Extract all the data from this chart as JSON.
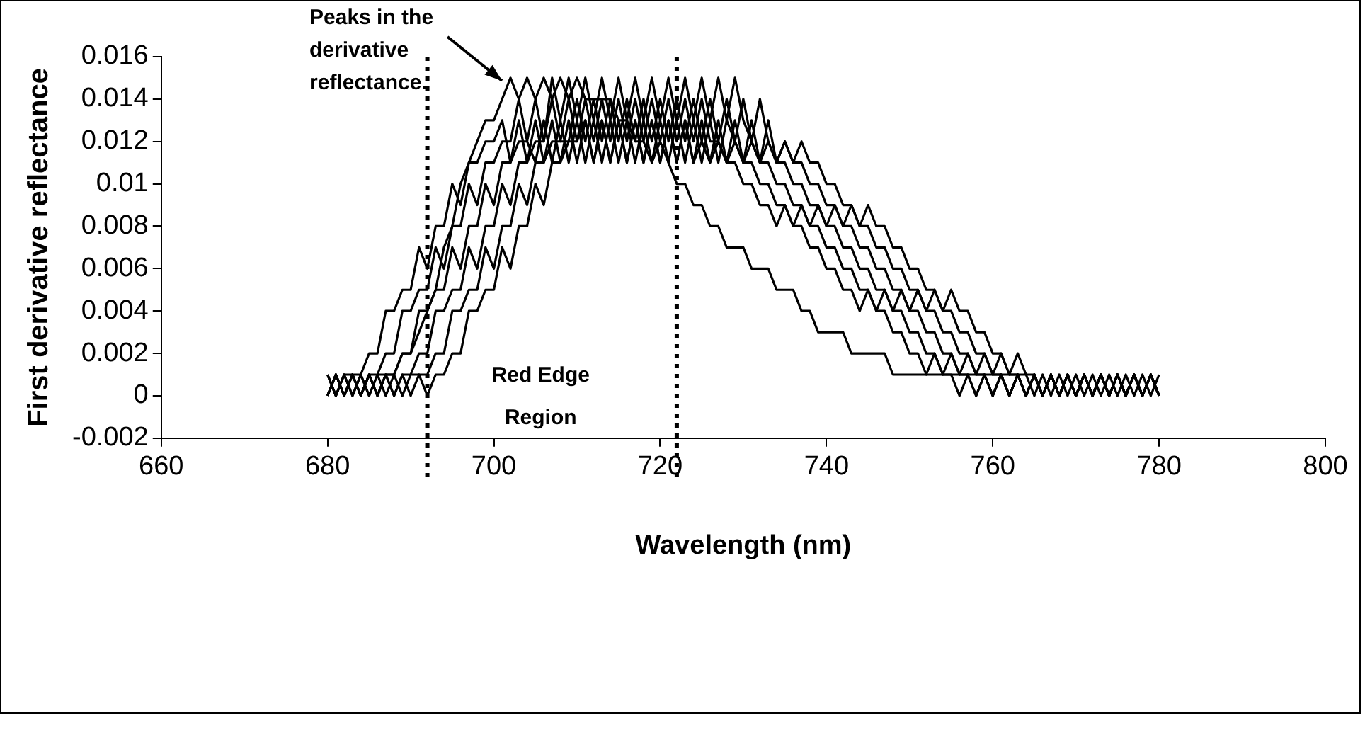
{
  "chart_data": {
    "type": "line",
    "xlabel": "Wavelength (nm)",
    "ylabel": "First derivative reflectance",
    "xlim": [
      660,
      800
    ],
    "xticks": [
      660,
      680,
      700,
      720,
      740,
      760,
      780,
      800
    ],
    "ylim": [
      -0.002,
      0.016
    ],
    "yticks": [
      -0.002,
      0,
      0.002,
      0.004,
      0.006,
      0.008,
      0.01,
      0.012,
      0.014,
      0.016
    ],
    "grid": false,
    "legend": false,
    "marker": "none",
    "line_style": "solid",
    "x": [
      680,
      681,
      682,
      683,
      684,
      685,
      686,
      687,
      688,
      689,
      690,
      691,
      692,
      693,
      694,
      695,
      696,
      697,
      698,
      699,
      700,
      701,
      702,
      703,
      704,
      705,
      706,
      707,
      708,
      709,
      710,
      711,
      712,
      713,
      714,
      715,
      716,
      717,
      718,
      719,
      720,
      721,
      722,
      723,
      724,
      725,
      726,
      727,
      728,
      729,
      730,
      731,
      732,
      733,
      734,
      735,
      736,
      737,
      738,
      739,
      740,
      741,
      742,
      743,
      744,
      745,
      746,
      747,
      748,
      749,
      750,
      751,
      752,
      753,
      754,
      755,
      756,
      757,
      758,
      759,
      760,
      761,
      762,
      763,
      764,
      765,
      766,
      767,
      768,
      769,
      770,
      771,
      772,
      773,
      774,
      775,
      776,
      777,
      778,
      779,
      780
    ],
    "series": [
      {
        "color": "#000000",
        "values": [
          0,
          0.001,
          0,
          0.001,
          0,
          0.001,
          0,
          0.001,
          0.001,
          0.002,
          0.002,
          0.003,
          0.004,
          0.005,
          0.007,
          0.008,
          0.01,
          0.011,
          0.012,
          0.013,
          0.013,
          0.014,
          0.015,
          0.014,
          0.015,
          0.014,
          0.015,
          0.014,
          0.015,
          0.014,
          0.015,
          0.014,
          0.014,
          0.014,
          0.014,
          0.013,
          0.013,
          0.012,
          0.012,
          0.011,
          0.012,
          0.011,
          0.01,
          0.01,
          0.009,
          0.009,
          0.008,
          0.008,
          0.007,
          0.007,
          0.007,
          0.006,
          0.006,
          0.006,
          0.005,
          0.005,
          0.005,
          0.004,
          0.004,
          0.003,
          0.003,
          0.003,
          0.003,
          0.002,
          0.002,
          0.002,
          0.002,
          0.002,
          0.001,
          0.001,
          0.001,
          0.001,
          0.001,
          0.001,
          0.001,
          0.001,
          0.001,
          0.001,
          0.001,
          0.001,
          0.001,
          0.001,
          0.001,
          0.001,
          0.001,
          0,
          0.001,
          0,
          0.001,
          0,
          0.001,
          0,
          0.001,
          0,
          0.001,
          0,
          0.001,
          0,
          0.001,
          0,
          0.001
        ]
      },
      {
        "color": "#000000",
        "values": [
          0.001,
          0,
          0.001,
          0.001,
          0.001,
          0.002,
          0.002,
          0.004,
          0.004,
          0.005,
          0.005,
          0.007,
          0.006,
          0.008,
          0.008,
          0.01,
          0.009,
          0.011,
          0.011,
          0.012,
          0.012,
          0.013,
          0.011,
          0.013,
          0.011,
          0.013,
          0.011,
          0.013,
          0.011,
          0.013,
          0.011,
          0.013,
          0.011,
          0.013,
          0.011,
          0.013,
          0.011,
          0.013,
          0.011,
          0.013,
          0.011,
          0.013,
          0.011,
          0.013,
          0.011,
          0.012,
          0.011,
          0.012,
          0.011,
          0.011,
          0.01,
          0.01,
          0.009,
          0.009,
          0.008,
          0.009,
          0.008,
          0.008,
          0.007,
          0.007,
          0.006,
          0.006,
          0.005,
          0.005,
          0.004,
          0.005,
          0.004,
          0.004,
          0.003,
          0.003,
          0.002,
          0.002,
          0.001,
          0.002,
          0.001,
          0.001,
          0,
          0.001,
          0,
          0.001,
          0,
          0.001,
          0,
          0.001,
          0,
          0.001,
          0,
          0.001,
          0,
          0.001,
          0,
          0.001,
          0,
          0.001,
          0,
          0.001,
          0,
          0.001,
          0,
          0.001,
          0
        ]
      },
      {
        "color": "#000000",
        "values": [
          0,
          0.001,
          0,
          0.001,
          0,
          0.001,
          0.001,
          0.002,
          0.002,
          0.004,
          0.004,
          0.005,
          0.005,
          0.007,
          0.006,
          0.008,
          0.008,
          0.01,
          0.009,
          0.011,
          0.011,
          0.012,
          0.012,
          0.014,
          0.012,
          0.014,
          0.012,
          0.014,
          0.012,
          0.014,
          0.012,
          0.014,
          0.012,
          0.014,
          0.012,
          0.014,
          0.012,
          0.014,
          0.012,
          0.014,
          0.012,
          0.014,
          0.012,
          0.014,
          0.012,
          0.014,
          0.012,
          0.012,
          0.011,
          0.012,
          0.011,
          0.011,
          0.01,
          0.01,
          0.009,
          0.009,
          0.008,
          0.009,
          0.008,
          0.008,
          0.007,
          0.007,
          0.006,
          0.006,
          0.005,
          0.005,
          0.004,
          0.005,
          0.004,
          0.004,
          0.003,
          0.003,
          0.002,
          0.002,
          0.001,
          0.002,
          0.001,
          0.001,
          0,
          0.001,
          0,
          0.001,
          0,
          0.001,
          0,
          0.001,
          0,
          0.001,
          0,
          0.001,
          0,
          0.001,
          0,
          0.001,
          0,
          0.001,
          0,
          0.001,
          0,
          0.001,
          0
        ]
      },
      {
        "color": "#000000",
        "values": [
          0.001,
          0,
          0.001,
          0,
          0.001,
          0,
          0.001,
          0.001,
          0.001,
          0.002,
          0.002,
          0.004,
          0.004,
          0.005,
          0.005,
          0.007,
          0.006,
          0.008,
          0.008,
          0.01,
          0.009,
          0.011,
          0.011,
          0.012,
          0.012,
          0.011,
          0.013,
          0.011,
          0.013,
          0.011,
          0.013,
          0.011,
          0.013,
          0.011,
          0.013,
          0.011,
          0.013,
          0.011,
          0.013,
          0.011,
          0.013,
          0.011,
          0.013,
          0.011,
          0.013,
          0.011,
          0.013,
          0.011,
          0.013,
          0.012,
          0.011,
          0.012,
          0.011,
          0.011,
          0.01,
          0.01,
          0.009,
          0.009,
          0.008,
          0.009,
          0.008,
          0.008,
          0.007,
          0.007,
          0.006,
          0.006,
          0.005,
          0.005,
          0.004,
          0.005,
          0.004,
          0.004,
          0.003,
          0.003,
          0.002,
          0.002,
          0.001,
          0.002,
          0.001,
          0.001,
          0,
          0.001,
          0,
          0.001,
          0,
          0.001,
          0,
          0.001,
          0,
          0.001,
          0,
          0.001,
          0,
          0.001,
          0,
          0.001,
          0,
          0.001,
          0,
          0.001,
          0
        ]
      },
      {
        "color": "#000000",
        "values": [
          0,
          0.001,
          0,
          0.001,
          0,
          0.001,
          0,
          0.001,
          0,
          0.001,
          0.001,
          0.002,
          0.002,
          0.004,
          0.004,
          0.005,
          0.005,
          0.007,
          0.006,
          0.008,
          0.008,
          0.01,
          0.009,
          0.011,
          0.011,
          0.012,
          0.012,
          0.015,
          0.013,
          0.015,
          0.013,
          0.015,
          0.013,
          0.015,
          0.013,
          0.015,
          0.013,
          0.015,
          0.013,
          0.015,
          0.013,
          0.015,
          0.013,
          0.015,
          0.013,
          0.015,
          0.013,
          0.015,
          0.013,
          0.015,
          0.013,
          0.012,
          0.011,
          0.012,
          0.011,
          0.011,
          0.01,
          0.01,
          0.009,
          0.009,
          0.008,
          0.009,
          0.008,
          0.008,
          0.007,
          0.007,
          0.006,
          0.006,
          0.005,
          0.005,
          0.004,
          0.005,
          0.004,
          0.004,
          0.003,
          0.003,
          0.002,
          0.002,
          0.001,
          0.002,
          0.001,
          0.001,
          0,
          0.001,
          0,
          0.001,
          0,
          0.001,
          0,
          0.001,
          0,
          0.001,
          0,
          0.001,
          0,
          0.001,
          0,
          0.001,
          0,
          0.001,
          0
        ]
      },
      {
        "color": "#000000",
        "values": [
          0.001,
          0,
          0.001,
          0,
          0.001,
          0,
          0.001,
          0,
          0.001,
          0,
          0.001,
          0.001,
          0.001,
          0.002,
          0.002,
          0.004,
          0.004,
          0.005,
          0.005,
          0.007,
          0.006,
          0.008,
          0.008,
          0.01,
          0.009,
          0.011,
          0.011,
          0.012,
          0.012,
          0.012,
          0.014,
          0.012,
          0.014,
          0.012,
          0.014,
          0.012,
          0.014,
          0.012,
          0.014,
          0.012,
          0.014,
          0.012,
          0.014,
          0.012,
          0.014,
          0.012,
          0.014,
          0.012,
          0.014,
          0.012,
          0.014,
          0.012,
          0.014,
          0.012,
          0.011,
          0.012,
          0.011,
          0.011,
          0.01,
          0.01,
          0.009,
          0.009,
          0.008,
          0.009,
          0.008,
          0.008,
          0.007,
          0.007,
          0.006,
          0.006,
          0.005,
          0.005,
          0.004,
          0.005,
          0.004,
          0.004,
          0.003,
          0.003,
          0.002,
          0.002,
          0.001,
          0.002,
          0.001,
          0.001,
          0,
          0.001,
          0,
          0.001,
          0,
          0.001,
          0,
          0.001,
          0,
          0.001,
          0,
          0.001,
          0,
          0.001,
          0,
          0.001,
          0
        ]
      },
      {
        "color": "#000000",
        "values": [
          0,
          0.001,
          0,
          0.001,
          0,
          0.001,
          0,
          0.001,
          0,
          0.001,
          0,
          0.001,
          0,
          0.001,
          0.001,
          0.002,
          0.002,
          0.004,
          0.004,
          0.005,
          0.005,
          0.007,
          0.006,
          0.008,
          0.008,
          0.01,
          0.009,
          0.011,
          0.011,
          0.012,
          0.012,
          0.013,
          0.011,
          0.013,
          0.011,
          0.013,
          0.011,
          0.013,
          0.011,
          0.013,
          0.011,
          0.013,
          0.011,
          0.013,
          0.011,
          0.013,
          0.011,
          0.013,
          0.011,
          0.013,
          0.011,
          0.013,
          0.011,
          0.013,
          0.011,
          0.012,
          0.011,
          0.012,
          0.011,
          0.011,
          0.01,
          0.01,
          0.009,
          0.009,
          0.008,
          0.009,
          0.008,
          0.008,
          0.007,
          0.007,
          0.006,
          0.006,
          0.005,
          0.005,
          0.004,
          0.005,
          0.004,
          0.004,
          0.003,
          0.003,
          0.002,
          0.002,
          0.001,
          0.002,
          0.001,
          0.001,
          0,
          0.001,
          0,
          0.001,
          0,
          0.001,
          0,
          0.001,
          0,
          0.001,
          0,
          0.001,
          0,
          0.001,
          0
        ]
      }
    ],
    "ref_lines": [
      {
        "axis": "x",
        "value": 692,
        "line_style": "dotted",
        "color": "#000000"
      },
      {
        "axis": "x",
        "value": 722,
        "line_style": "dotted",
        "color": "#000000"
      }
    ],
    "annotations": [
      {
        "text": "Peaks in the derivative reflectance.",
        "x": 702,
        "y": 0.015
      },
      "Red Edge Region"
    ]
  }
}
